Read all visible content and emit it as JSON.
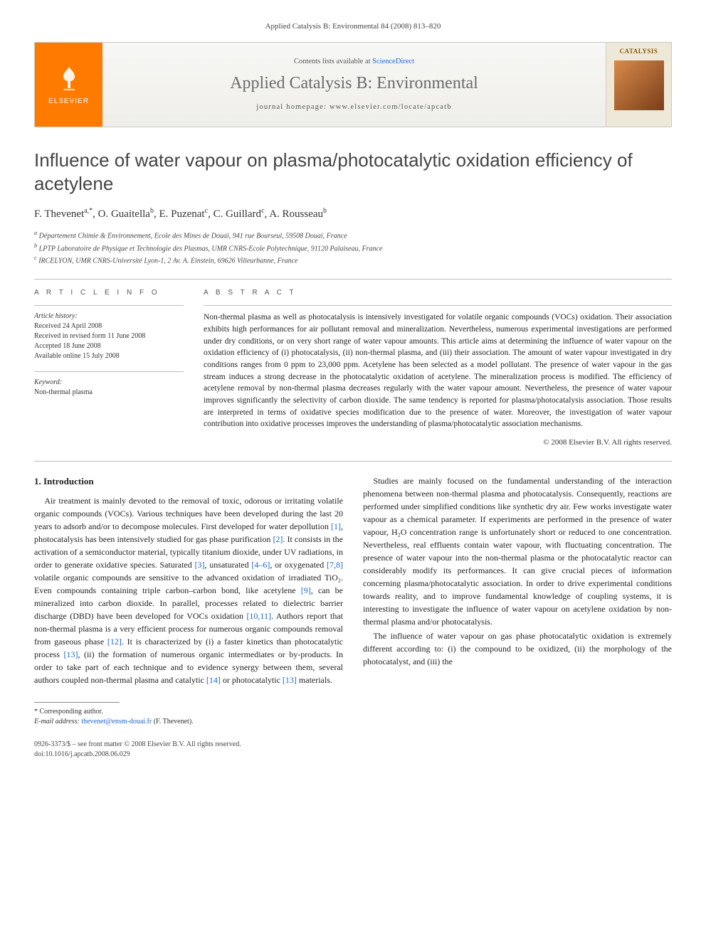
{
  "top_meta": "Applied Catalysis B: Environmental 84 (2008) 813–820",
  "banner": {
    "publisher": "ELSEVIER",
    "contents_prefix": "Contents lists available at ",
    "contents_link": "ScienceDirect",
    "journal": "Applied Catalysis B: Environmental",
    "homepage_prefix": "journal homepage: ",
    "homepage_url": "www.elsevier.com/locate/apcatb",
    "thumb_title": "CATALYSIS"
  },
  "title": "Influence of water vapour on plasma/photocatalytic oxidation efficiency of acetylene",
  "authors": [
    {
      "name": "F. Thevenet",
      "marks": "a,*"
    },
    {
      "name": "O. Guaitella",
      "marks": "b"
    },
    {
      "name": "E. Puzenat",
      "marks": "c"
    },
    {
      "name": "C. Guillard",
      "marks": "c"
    },
    {
      "name": "A. Rousseau",
      "marks": "b"
    }
  ],
  "affiliations": {
    "a": "Département Chimie & Environnement, Ecole des Mines de Douai, 941 rue Bourseul, 59508 Douai, France",
    "b": "LPTP Laboratoire de Physique et Technologie des Plasmas, UMR CNRS-Ecole Polytechnique, 91120 Palaiseau, France",
    "c": "IRCELYON, UMR CNRS-Université Lyon-1, 2 Av. A. Einstein, 69626 Villeurbanne, France"
  },
  "article_info": {
    "heading": "A R T I C L E   I N F O",
    "history_label": "Article history:",
    "history": [
      "Received 24 April 2008",
      "Received in revised form 11 June 2008",
      "Accepted 18 June 2008",
      "Available online 15 July 2008"
    ],
    "keyword_label": "Keyword:",
    "keywords": [
      "Non-thermal plasma"
    ]
  },
  "abstract": {
    "heading": "A B S T R A C T",
    "text": "Non-thermal plasma as well as photocatalysis is intensively investigated for volatile organic compounds (VOCs) oxidation. Their association exhibits high performances for air pollutant removal and mineralization. Nevertheless, numerous experimental investigations are performed under dry conditions, or on very short range of water vapour amounts. This article aims at determining the influence of water vapour on the oxidation efficiency of (i) photocatalysis, (ii) non-thermal plasma, and (iii) their association. The amount of water vapour investigated in dry conditions ranges from 0 ppm to 23,000 ppm. Acetylene has been selected as a model pollutant. The presence of water vapour in the gas stream induces a strong decrease in the photocatalytic oxidation of acetylene. The mineralization process is modified. The efficiency of acetylene removal by non-thermal plasma decreases regularly with the water vapour amount. Nevertheless, the presence of water vapour improves significantly the selectivity of carbon dioxide. The same tendency is reported for plasma/photocatalysis association. Those results are interpreted in terms of oxidative species modification due to the presence of water. Moreover, the investigation of water vapour contribution into oxidative processes improves the understanding of plasma/photocatalytic association mechanisms.",
    "copyright": "© 2008 Elsevier B.V. All rights reserved."
  },
  "section1": {
    "heading": "1. Introduction",
    "p1a": "Air treatment is mainly devoted to the removal of toxic, odorous or irritating volatile organic compounds (VOCs). Various techniques have been developed during the last 20 years to adsorb and/or to decompose molecules. First developed for water depollution ",
    "r1": "[1]",
    "p1b": ", photocatalysis has been intensively studied for gas phase purification ",
    "r2": "[2]",
    "p1c": ". It consists in the activation of a semiconductor material, typically titanium dioxide, under UV radiations, in order to generate oxidative species. Saturated ",
    "r3": "[3]",
    "p1d": ", unsaturated ",
    "r4": "[4–6]",
    "p1e": ", or oxygenated ",
    "r5": "[7,8]",
    "p1f": " volatile organic compounds are sensitive to the advanced oxidation of irradiated TiO₂. Even compounds containing triple carbon–carbon bond, like acetylene ",
    "r6": "[9]",
    "p1g": ", can be mineralized into carbon dioxide. In parallel, processes related to dielectric barrier discharge (DBD) have been developed for VOCs oxidation ",
    "r7": "[10,11]",
    "p1h": ". Authors report that non-thermal plasma is a very efficient process for numerous organic compounds removal from gaseous phase ",
    "r8": "[12]",
    "p1i": ". It is characterized by (i) a faster kinetics than photocatalytic process ",
    "r9": "[13]",
    "p1j": ", (ii) the formation of numerous organic intermediates or by-products. In order to take part of each technique and to evidence synergy between them, several authors coupled non-thermal plasma and catalytic ",
    "r10": "[14]",
    "p1k": " or photocatalytic ",
    "r11": "[13]",
    "p1l": " materials.",
    "p2": "Studies are mainly focused on the fundamental understanding of the interaction phenomena between non-thermal plasma and photocatalysis. Consequently, reactions are performed under simplified conditions like synthetic dry air. Few works investigate water vapour as a chemical parameter. If experiments are performed in the presence of water vapour, H₂O concentration range is unfortunately short or reduced to one concentration. Nevertheless, real effluents contain water vapour, with fluctuating concentration. The presence of water vapour into the non-thermal plasma or the photocatalytic reactor can considerably modify its performances. It can give crucial pieces of information concerning plasma/photocatalytic association. In order to drive experimental conditions towards reality, and to improve fundamental knowledge of coupling systems, it is interesting to investigate the influence of water vapour on acetylene oxidation by non-thermal plasma and/or photocatalysis.",
    "p3": "The influence of water vapour on gas phase photocatalytic oxidation is extremely different according to: (i) the compound to be oxidized, (ii) the morphology of the photocatalyst, and (iii) the"
  },
  "footnote": {
    "corresponding": "* Corresponding author.",
    "email_label": "E-mail address: ",
    "email": "thevenet@ensm-douai.fr",
    "email_suffix": " (F. Thevenet)."
  },
  "footer": {
    "issn": "0926-3373/$ – see front matter © 2008 Elsevier B.V. All rights reserved.",
    "doi": "doi:10.1016/j.apcatb.2008.06.029"
  }
}
